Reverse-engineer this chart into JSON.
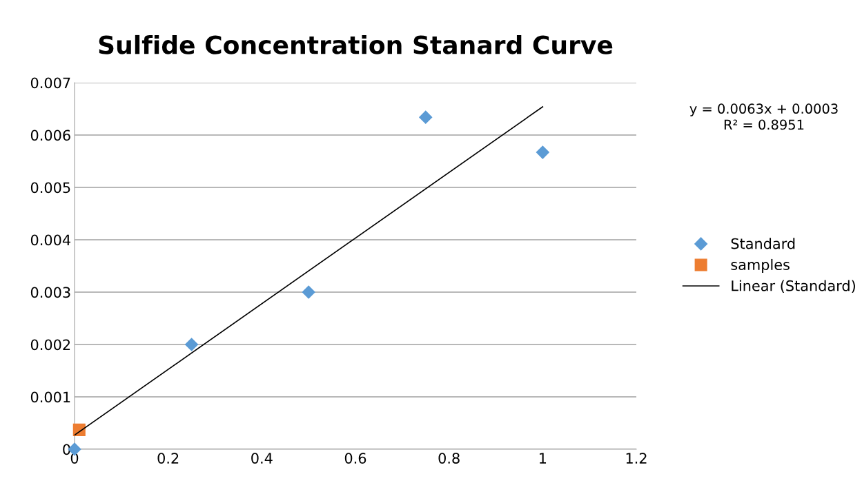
{
  "chart_data": {
    "type": "scatter",
    "title": "Sulfide Concentration Stanard Curve",
    "series": [
      {
        "name": "Standard",
        "color": "#5b9bd5",
        "marker": "diamond",
        "x": [
          0,
          0.25,
          0.5,
          0.75,
          1
        ],
        "values": [
          0,
          0.002,
          0.003,
          0.00634,
          0.00567
        ]
      },
      {
        "name": "samples",
        "color": "#ed7d31",
        "marker": "square",
        "x": [
          0.01
        ],
        "values": [
          0.00037
        ]
      },
      {
        "name": "Linear (Standard)",
        "type": "line",
        "color": "#000000",
        "marker": "none",
        "x": [
          0,
          1
        ],
        "values": [
          0.00027,
          0.00654
        ]
      }
    ],
    "annotations": [
      "y = 0.0063x + 0.0003\nR² = 0.8951"
    ],
    "xlim": [
      0,
      1.2
    ],
    "xticks": [
      0,
      0.2,
      0.4,
      0.6,
      0.8,
      1,
      1.2
    ],
    "ylim": [
      0,
      0.007
    ],
    "yticks": [
      0,
      0.001,
      0.002,
      0.003,
      0.004,
      0.005,
      0.006,
      0.007
    ],
    "grid": "y",
    "legend": "right"
  }
}
